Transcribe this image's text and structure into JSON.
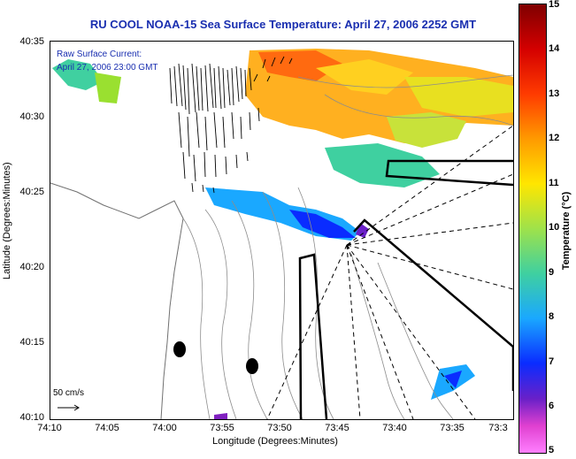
{
  "title": "RU COOL  NOAA-15  Sea Surface Temperature:  April 27, 2006 2252 GMT",
  "legend": {
    "current_title": "Raw Surface Current:",
    "current_time": "April 27, 2006 23:00 GMT",
    "scale_label": "50 cm/s"
  },
  "axes": {
    "x_title": "Longitude (Degrees:Minutes)",
    "y_title": "Latitude (Degrees:Minutes)",
    "x_ticks": [
      "74:10",
      "74:05",
      "74:00",
      "73:55",
      "73:50",
      "73:45",
      "73:40",
      "73:35",
      "73:3"
    ],
    "y_ticks": [
      "40:35",
      "40:30",
      "40:25",
      "40:20",
      "40:15",
      "40:10"
    ]
  },
  "colorbar": {
    "title": "Temperature (°C)",
    "ticks": [
      "15",
      "14",
      "13",
      "12",
      "11",
      "10",
      "9",
      "8",
      "7",
      "6",
      "5"
    ],
    "range": [
      5,
      15
    ]
  },
  "colors": {
    "title": "#1a2fb0",
    "legend_text": "#1a2fb0",
    "vectors": "#000000",
    "contours": "#8c8c8c"
  }
}
